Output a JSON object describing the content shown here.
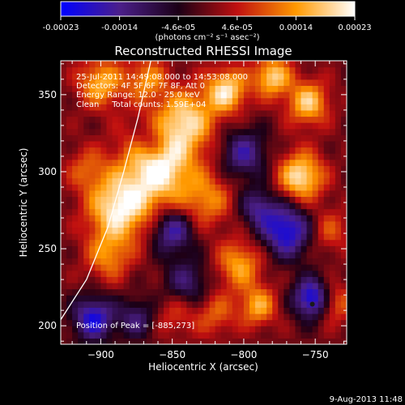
{
  "colorbar": {
    "ticks": [
      "-0.00023",
      "-0.00014",
      "-4.6e-05",
      "4.6e-05",
      "0.00014",
      "0.00023"
    ],
    "unit_label": "(photons cm⁻² s⁻¹ asec⁻²)"
  },
  "chart_data": {
    "type": "heatmap",
    "title": "Reconstructed RHESSI Image",
    "xlabel": "Heliocentric X (arcsec)",
    "ylabel": "Heliocentric Y (arcsec)",
    "xlim": [
      -928,
      -728
    ],
    "ylim": [
      188,
      372
    ],
    "x_ticks": [
      -900,
      -850,
      -800,
      -750
    ],
    "y_ticks": [
      200,
      250,
      300,
      350
    ],
    "x_tick_labels": [
      "−900",
      "−850",
      "−800",
      "−750"
    ],
    "y_tick_labels": [
      "200",
      "250",
      "300",
      "350"
    ],
    "value_range": [
      -0.00023,
      0.00023
    ],
    "colormap": [
      "#0000ff",
      "#4b1f8a",
      "#1b0016",
      "#c01010",
      "#ff9900",
      "#ffffff"
    ],
    "peak": [
      -885,
      273
    ],
    "limb_curve": [
      [
        -928,
        204
      ],
      [
        -910,
        230
      ],
      [
        -895,
        264
      ],
      [
        -884,
        300
      ],
      [
        -874,
        335
      ],
      [
        -865,
        372
      ]
    ],
    "blobs": [
      {
        "x": -888,
        "y": 276,
        "v": 1.0,
        "s": 15
      },
      {
        "x": -860,
        "y": 303,
        "v": 1.1,
        "s": 18
      },
      {
        "x": -840,
        "y": 334,
        "v": 0.85,
        "s": 14
      },
      {
        "x": -900,
        "y": 358,
        "v": 0.75,
        "s": 11
      },
      {
        "x": -868,
        "y": 360,
        "v": 0.6,
        "s": 10
      },
      {
        "x": -812,
        "y": 353,
        "v": 0.95,
        "s": 10
      },
      {
        "x": -780,
        "y": 362,
        "v": 0.9,
        "s": 9
      },
      {
        "x": -755,
        "y": 345,
        "v": 0.85,
        "s": 10
      },
      {
        "x": -760,
        "y": 297,
        "v": 1.0,
        "s": 11
      },
      {
        "x": -825,
        "y": 282,
        "v": 0.55,
        "s": 12
      },
      {
        "x": -803,
        "y": 240,
        "v": 0.7,
        "s": 11
      },
      {
        "x": -790,
        "y": 213,
        "v": 0.7,
        "s": 9
      },
      {
        "x": -820,
        "y": 208,
        "v": 0.45,
        "s": 10
      },
      {
        "x": -895,
        "y": 245,
        "v": 0.55,
        "s": 11
      },
      {
        "x": -910,
        "y": 302,
        "v": 0.4,
        "s": 10
      },
      {
        "x": -740,
        "y": 262,
        "v": 0.4,
        "s": 10
      },
      {
        "x": -737,
        "y": 215,
        "v": 0.55,
        "s": 9
      },
      {
        "x": -848,
        "y": 208,
        "v": 0.35,
        "s": 10
      },
      {
        "x": -905,
        "y": 205,
        "v": -0.95,
        "s": 10
      },
      {
        "x": -770,
        "y": 262,
        "v": -1.0,
        "s": 12
      },
      {
        "x": -752,
        "y": 218,
        "v": -1.1,
        "s": 9
      },
      {
        "x": -800,
        "y": 312,
        "v": -0.7,
        "s": 11
      },
      {
        "x": -850,
        "y": 262,
        "v": -0.8,
        "s": 10
      },
      {
        "x": -840,
        "y": 228,
        "v": -0.55,
        "s": 11
      },
      {
        "x": -875,
        "y": 205,
        "v": -0.55,
        "s": 9
      },
      {
        "x": -790,
        "y": 277,
        "v": -0.6,
        "s": 9
      },
      {
        "x": -865,
        "y": 320,
        "v": -0.45,
        "s": 8
      }
    ]
  },
  "info": {
    "line1": "25-Jul-2011 14:49:08.000 to 14:53:08.000",
    "line2": "Detectors: 4F 5F 6F 7F 8F, Att 0",
    "line3": "Energy Range: 12.0 - 25.0 keV",
    "line4": "Clean     Total counts: 1.59E+04"
  },
  "peak_label": "Position of Peak = [-885,273]",
  "timestamp": "9-Aug-2013 11:48"
}
